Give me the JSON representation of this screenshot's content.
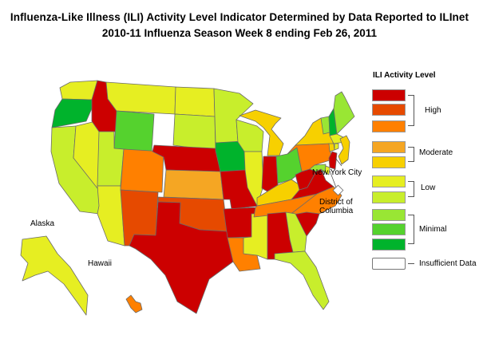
{
  "header": {
    "title": "Influenza-Like Illness (ILI) Activity Level Indicator Determined by Data Reported to ILInet",
    "subtitle": "2010-11  Influenza Season Week  8 ending Feb 26, 2011"
  },
  "colors": {
    "level_10": "#cc0000",
    "level_9": "#e64a00",
    "level_8": "#ff8000",
    "level_7": "#f5a623",
    "level_6": "#f7d000",
    "level_5": "#e6ee22",
    "level_4": "#c8ee2c",
    "level_3": "#99e634",
    "level_2": "#55d22e",
    "level_1": "#00b32c",
    "insufficient": "#ffffff",
    "border": "#6b6b6b"
  },
  "legend": {
    "title": "ILI Activity Level",
    "groups": [
      {
        "label": "High"
      },
      {
        "label": "Moderate"
      },
      {
        "label": "Low"
      },
      {
        "label": "Minimal"
      },
      {
        "label": "Insufficient Data"
      }
    ]
  },
  "map_labels": {
    "new_york_city": "New York City",
    "district_of_columbia": "District of\nColumbia",
    "alaska": "Alaska",
    "hawaii": "Hawaii"
  },
  "state_levels": {
    "WA": 5,
    "OR": 1,
    "CA": 4,
    "NV": 5,
    "ID": 10,
    "MT": 5,
    "WY": 2,
    "UT": 4,
    "AZ": 5,
    "CO": 8,
    "NM": 9,
    "ND": 5,
    "SD": 4,
    "NE": 10,
    "KS": 7,
    "OK": 9,
    "TX": 10,
    "MN": 4,
    "IA": 1,
    "MO": 10,
    "AR": 10,
    "LA": 8,
    "WI": 4,
    "IL": 5,
    "MS": 5,
    "MI": 6,
    "IN": 10,
    "KY": 6,
    "TN": 8,
    "AL": 10,
    "OH": 2,
    "WV": 10,
    "VA": 10,
    "NC": 8,
    "SC": 10,
    "GA": 4,
    "FL": 4,
    "PA": 8,
    "NY": 6,
    "VT": 3,
    "NH": 1,
    "ME": 3,
    "MA": 5,
    "CT": 6,
    "RI": 5,
    "NJ": 10,
    "DE": 5,
    "MD": 3,
    "AK": 5,
    "HI": 8,
    "NYC": 6,
    "DC": 0
  }
}
